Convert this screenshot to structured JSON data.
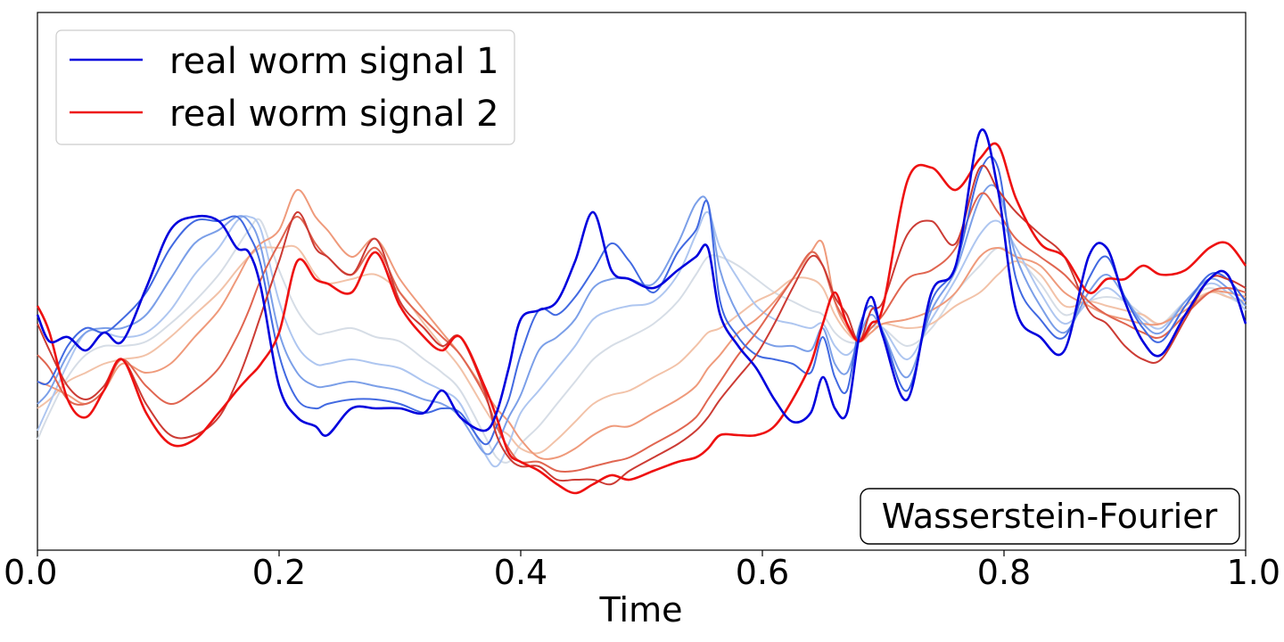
{
  "chart_data": {
    "type": "line",
    "title": "",
    "xlabel": "Time",
    "ylabel": "",
    "xlim": [
      0.0,
      1.0
    ],
    "ylim": [
      0,
      1
    ],
    "x_ticks": [
      "0.0",
      "0.2",
      "0.4",
      "0.6",
      "0.8",
      "1.0"
    ],
    "grid": false,
    "legend_position": "top-left",
    "annotation": "Wasserstein-Fourier",
    "x": [
      0.0,
      0.01,
      0.025,
      0.04,
      0.055,
      0.07,
      0.09,
      0.11,
      0.13,
      0.15,
      0.165,
      0.175,
      0.185,
      0.2,
      0.215,
      0.23,
      0.24,
      0.26,
      0.28,
      0.3,
      0.32,
      0.335,
      0.35,
      0.37,
      0.38,
      0.39,
      0.4,
      0.415,
      0.43,
      0.445,
      0.46,
      0.475,
      0.49,
      0.51,
      0.53,
      0.545,
      0.555,
      0.565,
      0.58,
      0.595,
      0.61,
      0.625,
      0.64,
      0.65,
      0.66,
      0.67,
      0.68,
      0.69,
      0.7,
      0.72,
      0.74,
      0.76,
      0.78,
      0.795,
      0.81,
      0.83,
      0.85,
      0.87,
      0.885,
      0.9,
      0.915,
      0.93,
      0.95,
      0.97,
      0.985,
      1.0
    ],
    "series": [
      {
        "name": "real worm signal 1",
        "color": "#0000dd",
        "values": [
          0.47,
          0.41,
          0.42,
          0.39,
          0.43,
          0.41,
          0.53,
          0.66,
          0.69,
          0.68,
          0.62,
          0.61,
          0.53,
          0.31,
          0.24,
          0.22,
          0.2,
          0.26,
          0.26,
          0.26,
          0.25,
          0.3,
          0.24,
          0.21,
          0.25,
          0.35,
          0.46,
          0.48,
          0.5,
          0.59,
          0.7,
          0.57,
          0.55,
          0.53,
          0.57,
          0.6,
          0.62,
          0.47,
          0.4,
          0.35,
          0.28,
          0.23,
          0.25,
          0.33,
          0.26,
          0.25,
          0.42,
          0.51,
          0.42,
          0.28,
          0.52,
          0.58,
          0.88,
          0.75,
          0.48,
          0.42,
          0.39,
          0.6,
          0.62,
          0.5,
          0.41,
          0.38,
          0.47,
          0.55,
          0.56,
          0.45
        ]
      },
      {
        "name": "",
        "color": "#4169e1",
        "values": [
          0.32,
          0.32,
          0.4,
          0.44,
          0.43,
          0.46,
          0.52,
          0.62,
          0.68,
          0.68,
          0.69,
          0.65,
          0.58,
          0.38,
          0.28,
          0.26,
          0.27,
          0.28,
          0.28,
          0.27,
          0.25,
          0.26,
          0.25,
          0.18,
          0.22,
          0.28,
          0.38,
          0.48,
          0.47,
          0.51,
          0.57,
          0.63,
          0.59,
          0.52,
          0.61,
          0.66,
          0.72,
          0.5,
          0.42,
          0.38,
          0.37,
          0.36,
          0.34,
          0.42,
          0.33,
          0.3,
          0.44,
          0.49,
          0.43,
          0.3,
          0.5,
          0.58,
          0.79,
          0.8,
          0.55,
          0.46,
          0.42,
          0.55,
          0.6,
          0.51,
          0.44,
          0.41,
          0.49,
          0.56,
          0.55,
          0.5
        ]
      },
      {
        "name": "",
        "color": "#7b9fe8",
        "values": [
          0.27,
          0.3,
          0.38,
          0.43,
          0.44,
          0.44,
          0.47,
          0.55,
          0.63,
          0.66,
          0.69,
          0.68,
          0.62,
          0.43,
          0.34,
          0.31,
          0.31,
          0.32,
          0.31,
          0.3,
          0.28,
          0.27,
          0.24,
          0.16,
          0.18,
          0.24,
          0.29,
          0.39,
          0.42,
          0.46,
          0.53,
          0.55,
          0.55,
          0.54,
          0.63,
          0.72,
          0.72,
          0.57,
          0.47,
          0.42,
          0.4,
          0.4,
          0.39,
          0.44,
          0.36,
          0.34,
          0.42,
          0.47,
          0.43,
          0.33,
          0.48,
          0.57,
          0.73,
          0.75,
          0.6,
          0.49,
          0.43,
          0.52,
          0.56,
          0.51,
          0.45,
          0.43,
          0.5,
          0.55,
          0.53,
          0.49
        ]
      },
      {
        "name": "",
        "color": "#aec6f0",
        "values": [
          0.21,
          0.27,
          0.36,
          0.43,
          0.43,
          0.42,
          0.43,
          0.48,
          0.56,
          0.62,
          0.68,
          0.69,
          0.66,
          0.5,
          0.4,
          0.36,
          0.36,
          0.37,
          0.36,
          0.35,
          0.32,
          0.3,
          0.27,
          0.16,
          0.13,
          0.18,
          0.25,
          0.3,
          0.35,
          0.4,
          0.46,
          0.48,
          0.49,
          0.5,
          0.56,
          0.65,
          0.7,
          0.62,
          0.55,
          0.49,
          0.46,
          0.45,
          0.44,
          0.45,
          0.4,
          0.38,
          0.41,
          0.45,
          0.44,
          0.37,
          0.46,
          0.55,
          0.65,
          0.68,
          0.62,
          0.52,
          0.45,
          0.5,
          0.53,
          0.5,
          0.46,
          0.44,
          0.5,
          0.54,
          0.52,
          0.48
        ]
      },
      {
        "name": "",
        "color": "#d6dde6",
        "values": [
          0.19,
          0.25,
          0.33,
          0.38,
          0.4,
          0.4,
          0.41,
          0.45,
          0.5,
          0.56,
          0.62,
          0.66,
          0.68,
          0.57,
          0.48,
          0.43,
          0.43,
          0.44,
          0.42,
          0.41,
          0.37,
          0.34,
          0.3,
          0.2,
          0.15,
          0.14,
          0.18,
          0.22,
          0.27,
          0.32,
          0.37,
          0.4,
          0.42,
          0.45,
          0.5,
          0.56,
          0.6,
          0.6,
          0.58,
          0.55,
          0.52,
          0.5,
          0.48,
          0.47,
          0.43,
          0.41,
          0.41,
          0.44,
          0.44,
          0.4,
          0.44,
          0.52,
          0.58,
          0.62,
          0.6,
          0.54,
          0.47,
          0.5,
          0.51,
          0.5,
          0.47,
          0.45,
          0.5,
          0.53,
          0.51,
          0.49
        ]
      },
      {
        "name": "",
        "color": "#f2c2a8",
        "values": [
          0.26,
          0.28,
          0.32,
          0.34,
          0.36,
          0.37,
          0.38,
          0.42,
          0.47,
          0.52,
          0.57,
          0.6,
          0.62,
          0.62,
          0.62,
          0.56,
          0.54,
          0.55,
          0.56,
          0.52,
          0.45,
          0.4,
          0.35,
          0.26,
          0.22,
          0.2,
          0.17,
          0.16,
          0.19,
          0.23,
          0.27,
          0.29,
          0.3,
          0.33,
          0.36,
          0.4,
          0.43,
          0.44,
          0.47,
          0.5,
          0.52,
          0.55,
          0.55,
          0.53,
          0.47,
          0.43,
          0.41,
          0.43,
          0.45,
          0.44,
          0.45,
          0.49,
          0.52,
          0.56,
          0.59,
          0.56,
          0.49,
          0.5,
          0.49,
          0.48,
          0.47,
          0.45,
          0.49,
          0.52,
          0.51,
          0.5
        ]
      },
      {
        "name": "",
        "color": "#ef9a7b",
        "values": [
          0.32,
          0.31,
          0.29,
          0.27,
          0.3,
          0.36,
          0.34,
          0.36,
          0.42,
          0.48,
          0.55,
          0.6,
          0.63,
          0.66,
          0.75,
          0.69,
          0.66,
          0.6,
          0.64,
          0.55,
          0.48,
          0.43,
          0.38,
          0.3,
          0.26,
          0.23,
          0.19,
          0.15,
          0.15,
          0.17,
          0.2,
          0.22,
          0.22,
          0.25,
          0.28,
          0.31,
          0.35,
          0.38,
          0.43,
          0.46,
          0.5,
          0.55,
          0.61,
          0.63,
          0.5,
          0.44,
          0.41,
          0.43,
          0.45,
          0.46,
          0.48,
          0.52,
          0.6,
          0.62,
          0.6,
          0.58,
          0.52,
          0.49,
          0.47,
          0.46,
          0.45,
          0.45,
          0.48,
          0.52,
          0.52,
          0.51
        ]
      },
      {
        "name": "",
        "color": "#e06550",
        "values": [
          0.38,
          0.35,
          0.28,
          0.27,
          0.3,
          0.37,
          0.31,
          0.27,
          0.3,
          0.35,
          0.42,
          0.48,
          0.55,
          0.63,
          0.69,
          0.63,
          0.6,
          0.56,
          0.62,
          0.52,
          0.46,
          0.42,
          0.38,
          0.29,
          0.22,
          0.17,
          0.14,
          0.14,
          0.12,
          0.12,
          0.13,
          0.14,
          0.15,
          0.18,
          0.21,
          0.24,
          0.28,
          0.32,
          0.38,
          0.43,
          0.49,
          0.55,
          0.61,
          0.58,
          0.5,
          0.45,
          0.41,
          0.44,
          0.47,
          0.55,
          0.57,
          0.62,
          0.74,
          0.7,
          0.64,
          0.6,
          0.56,
          0.5,
          0.47,
          0.45,
          0.43,
          0.42,
          0.47,
          0.52,
          0.53,
          0.52
        ]
      },
      {
        "name": "",
        "color": "#cc3b34",
        "values": [
          0.45,
          0.39,
          0.31,
          0.28,
          0.31,
          0.37,
          0.27,
          0.2,
          0.2,
          0.24,
          0.32,
          0.39,
          0.47,
          0.59,
          0.7,
          0.62,
          0.6,
          0.56,
          0.64,
          0.5,
          0.44,
          0.4,
          0.42,
          0.3,
          0.2,
          0.15,
          0.13,
          0.13,
          0.1,
          0.1,
          0.1,
          0.09,
          0.12,
          0.15,
          0.18,
          0.21,
          0.24,
          0.28,
          0.33,
          0.38,
          0.45,
          0.53,
          0.6,
          0.58,
          0.51,
          0.47,
          0.41,
          0.48,
          0.5,
          0.65,
          0.68,
          0.63,
          0.8,
          0.75,
          0.7,
          0.65,
          0.6,
          0.48,
          0.45,
          0.4,
          0.37,
          0.37,
          0.46,
          0.55,
          0.55,
          0.53
        ]
      },
      {
        "name": "real worm signal 2",
        "color": "#ee1111",
        "values": [
          0.49,
          0.43,
          0.28,
          0.24,
          0.3,
          0.37,
          0.25,
          0.18,
          0.19,
          0.25,
          0.3,
          0.33,
          0.36,
          0.43,
          0.59,
          0.55,
          0.54,
          0.52,
          0.61,
          0.49,
          0.42,
          0.39,
          0.42,
          0.31,
          0.24,
          0.16,
          0.14,
          0.12,
          0.09,
          0.07,
          0.09,
          0.11,
          0.1,
          0.12,
          0.14,
          0.15,
          0.17,
          0.2,
          0.2,
          0.2,
          0.22,
          0.28,
          0.36,
          0.45,
          0.52,
          0.45,
          0.41,
          0.45,
          0.49,
          0.77,
          0.8,
          0.75,
          0.82,
          0.85,
          0.73,
          0.63,
          0.6,
          0.52,
          0.55,
          0.55,
          0.58,
          0.56,
          0.57,
          0.62,
          0.63,
          0.58
        ]
      }
    ]
  }
}
